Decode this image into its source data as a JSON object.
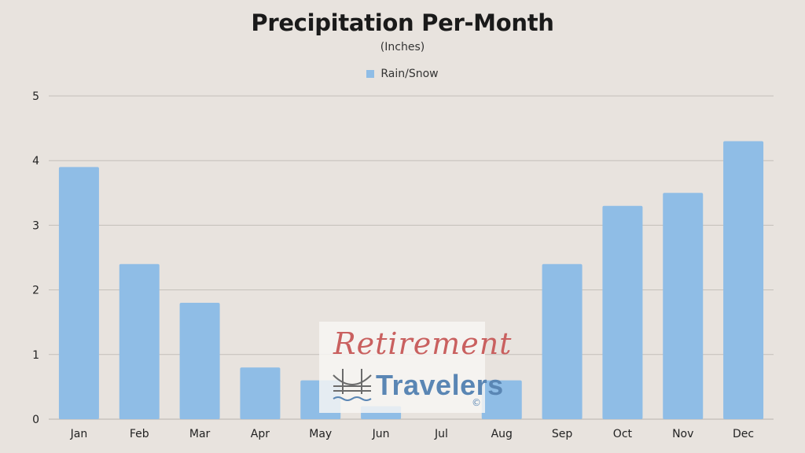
{
  "chart_data": {
    "type": "bar",
    "title": "Precipitation Per-Month",
    "subtitle": "(Inches)",
    "categories": [
      "Jan",
      "Feb",
      "Mar",
      "Apr",
      "May",
      "Jun",
      "Jul",
      "Aug",
      "Sep",
      "Oct",
      "Nov",
      "Dec"
    ],
    "series": [
      {
        "name": "Rain/Snow",
        "values": [
          3.9,
          2.4,
          1.8,
          0.8,
          0.6,
          0.2,
          0,
          0.6,
          2.4,
          3.3,
          3.5,
          4.3
        ],
        "color": "#8fbde6"
      }
    ],
    "yticks": [
      "0",
      "1",
      "2",
      "3",
      "4",
      "5"
    ],
    "ylim": [
      0,
      5
    ],
    "grid": true,
    "legend_position": "top-center"
  },
  "watermark": {
    "line1": "Retirement",
    "line2": "Travelers",
    "copyright": "©"
  }
}
